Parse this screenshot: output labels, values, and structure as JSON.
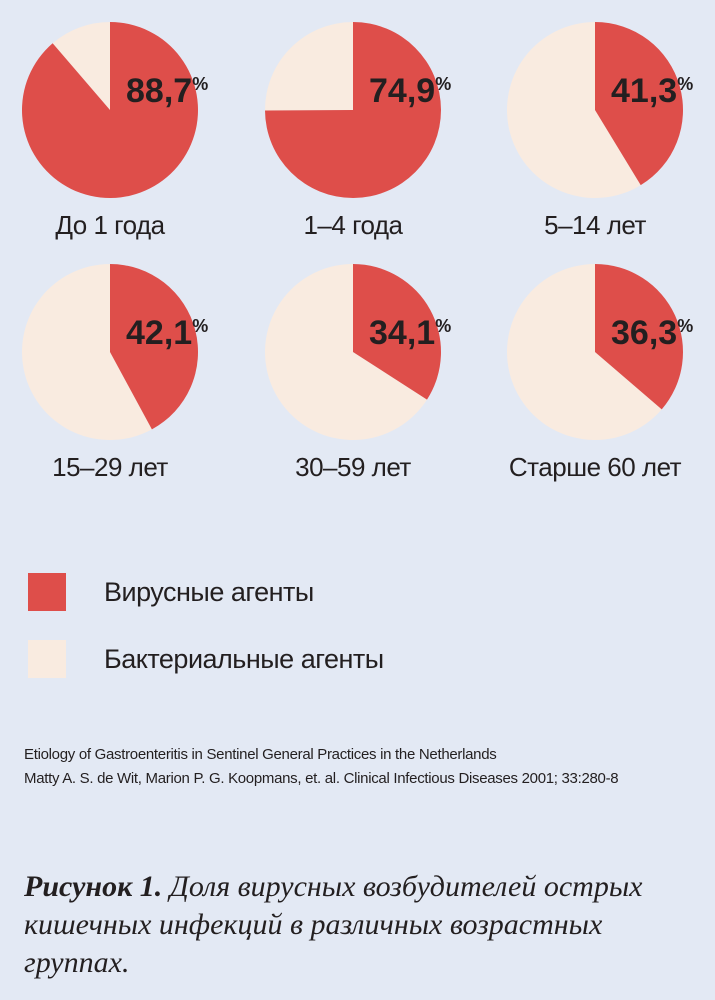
{
  "colors": {
    "viral": "#de4e4a",
    "bacterial": "#f9ebe0",
    "text": "#231f20",
    "background": "#e3e9f4"
  },
  "chart_data": {
    "type": "pie",
    "unit": "%",
    "series_names": [
      "Вирусные агенты",
      "Бактериальные агенты"
    ],
    "charts": [
      {
        "group": "До 1 года",
        "viral_label": "88,7",
        "viral": 88.7,
        "bacterial": 11.3
      },
      {
        "group": "1–4 года",
        "viral_label": "74,9",
        "viral": 74.9,
        "bacterial": 25.1
      },
      {
        "group": "5–14 лет",
        "viral_label": "41,3",
        "viral": 41.3,
        "bacterial": 58.7
      },
      {
        "group": "15–29 лет",
        "viral_label": "42,1",
        "viral": 42.1,
        "bacterial": 57.9
      },
      {
        "group": "30–59 лет",
        "viral_label": "34,1",
        "viral": 34.1,
        "bacterial": 65.9
      },
      {
        "group": "Старше 60 лет",
        "viral_label": "36,3",
        "viral": 36.3,
        "bacterial": 63.7
      }
    ]
  },
  "legend": [
    {
      "label": "Вирусные агенты",
      "color": "#de4e4a"
    },
    {
      "label": "Бактериальные агенты",
      "color": "#f9ebe0"
    }
  ],
  "source": {
    "line1": "Etiology of Gastroenteritis in Sentinel General Practices in the Netherlands",
    "line2": "Matty A. S. de Wit, Marion P. G. Koopmans, et. al. Clinical Infectious Diseases 2001; 33:280-8"
  },
  "caption": {
    "label": "Рисунок 1.",
    "text": " Доля вирусных возбудителей острых кишечных инфекций в различных возрастных группах."
  }
}
